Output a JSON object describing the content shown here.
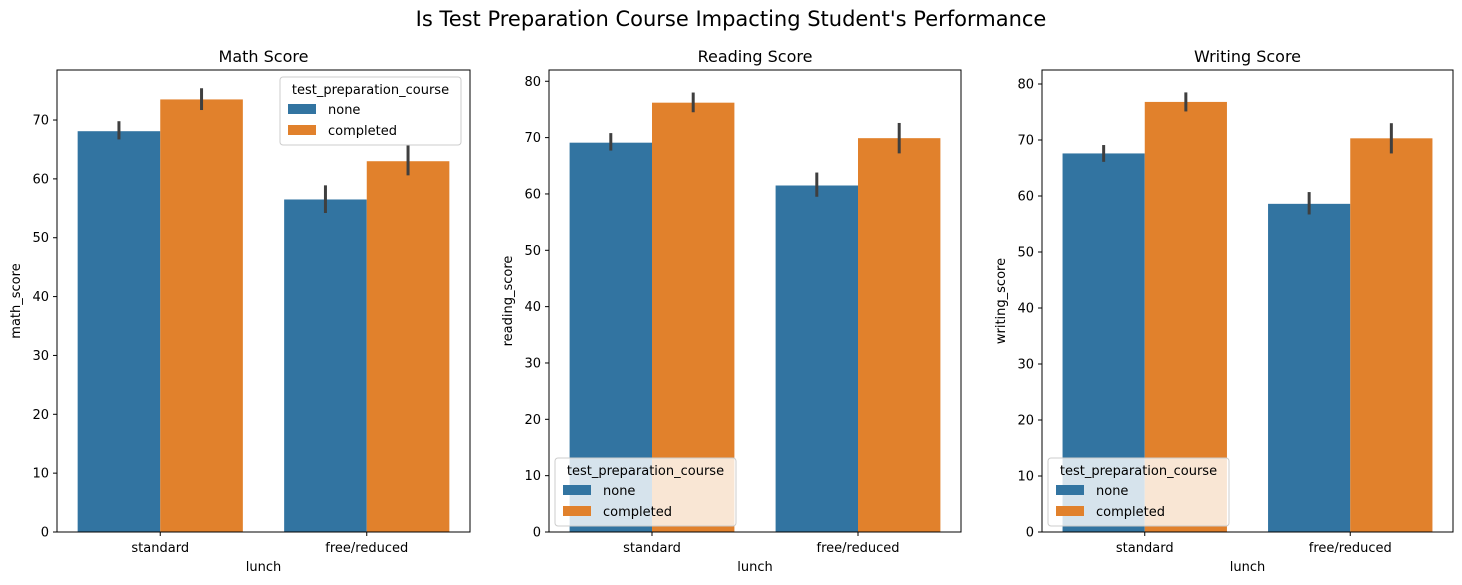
{
  "suptitle": "Is Test Preparation Course Impacting Student's Performance",
  "colors": {
    "none": "#3274a1",
    "completed": "#e1812c",
    "errorbar": "#3f3f3f"
  },
  "chart_data": [
    {
      "type": "bar",
      "title": "Math Score",
      "xlabel": "lunch",
      "ylabel": "math_score",
      "categories": [
        "standard",
        "free/reduced"
      ],
      "ylim": [
        0,
        78.5
      ],
      "yticks": [
        0,
        10,
        20,
        30,
        40,
        50,
        60,
        70
      ],
      "series": [
        {
          "name": "none",
          "values": [
            68.1,
            56.5
          ],
          "ci": [
            [
              66.7,
              69.8
            ],
            [
              54.2,
              58.9
            ]
          ]
        },
        {
          "name": "completed",
          "values": [
            73.5,
            63.0
          ],
          "ci": [
            [
              71.7,
              75.4
            ],
            [
              60.6,
              65.8
            ]
          ]
        }
      ],
      "legend": {
        "title": "test_preparation_course",
        "location": "upper right"
      }
    },
    {
      "type": "bar",
      "title": "Reading Score",
      "xlabel": "lunch",
      "ylabel": "reading_score",
      "categories": [
        "standard",
        "free/reduced"
      ],
      "ylim": [
        0,
        82
      ],
      "yticks": [
        0,
        10,
        20,
        30,
        40,
        50,
        60,
        70,
        80
      ],
      "series": [
        {
          "name": "none",
          "values": [
            69.1,
            61.5
          ],
          "ci": [
            [
              67.7,
              70.8
            ],
            [
              59.5,
              63.8
            ]
          ]
        },
        {
          "name": "completed",
          "values": [
            76.2,
            69.9
          ],
          "ci": [
            [
              74.5,
              78.0
            ],
            [
              67.2,
              72.6
            ]
          ]
        }
      ],
      "legend": {
        "title": "test_preparation_course",
        "location": "lower left"
      }
    },
    {
      "type": "bar",
      "title": "Writing Score",
      "xlabel": "lunch",
      "ylabel": "writing_score",
      "categories": [
        "standard",
        "free/reduced"
      ],
      "ylim": [
        0,
        82.5
      ],
      "yticks": [
        0,
        10,
        20,
        30,
        40,
        50,
        60,
        70,
        80
      ],
      "series": [
        {
          "name": "none",
          "values": [
            67.6,
            58.6
          ],
          "ci": [
            [
              66.1,
              69.1
            ],
            [
              56.7,
              60.7
            ]
          ]
        },
        {
          "name": "completed",
          "values": [
            76.8,
            70.3
          ],
          "ci": [
            [
              75.1,
              78.5
            ],
            [
              67.6,
              73.0
            ]
          ]
        }
      ],
      "legend": {
        "title": "test_preparation_course",
        "location": "lower left"
      }
    }
  ]
}
